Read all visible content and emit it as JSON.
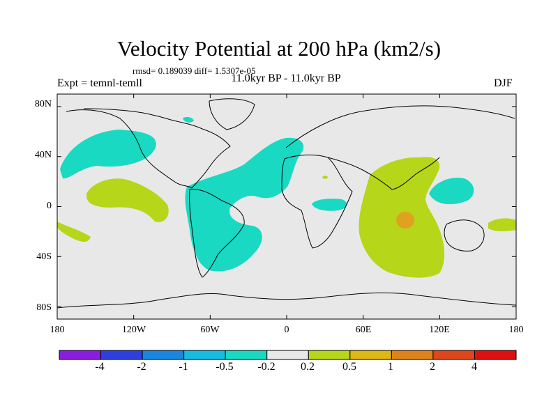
{
  "title": "Velocity Potential at 200 hPa (km2/s)",
  "stats_line": "rmsd= 0.189039 diff= 1.5307e-05",
  "period": "11.0kyr BP - 11.0kyr BP",
  "experiment": "Expt = temnl-temll",
  "season": "DJF",
  "lon_labels": [
    "180",
    "120W",
    "60W",
    "0",
    "60E",
    "120E",
    "180"
  ],
  "lat_labels": [
    "80N",
    "40N",
    "0",
    "40S",
    "80S"
  ],
  "colorbar": {
    "labels": [
      "-4",
      "-2",
      "-1",
      "-0.5",
      "-0.2",
      "0.2",
      "0.5",
      "1",
      "2",
      "4"
    ],
    "colors": [
      "#8a1ee0",
      "#2d3fe0",
      "#1a86e0",
      "#14bde0",
      "#19d9c2",
      "#e8e8e8",
      "#b6d619",
      "#dbb812",
      "#e0821a",
      "#e0461c",
      "#e01010"
    ]
  },
  "map_colors": {
    "ocean": "#e8e8e8",
    "negative_fill": "#19d9c2",
    "positive_fill": "#b6d619",
    "strong_positive_fill": "#e0a020",
    "coast": "#000000"
  }
}
